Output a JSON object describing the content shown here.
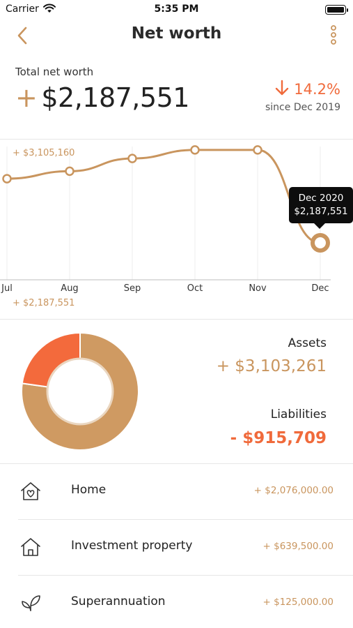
{
  "status_bar": {
    "carrier": "Carrier",
    "time": "5:35 PM"
  },
  "nav": {
    "title": "Net worth",
    "back_icon": "chevron-left-icon",
    "more_icon": "more-vertical-icon"
  },
  "summary": {
    "label": "Total net worth",
    "sign": "+",
    "value": "$2,187,551",
    "change": "14.2%",
    "change_direction": "down",
    "change_since": "since Dec 2019"
  },
  "colors": {
    "accent": "#c9955e",
    "negative": "#f06a3b",
    "tooltip_bg": "#0d0d0d"
  },
  "chart_data": {
    "type": "line",
    "categories": [
      "Jul",
      "Aug",
      "Sep",
      "Oct",
      "Nov",
      "Dec"
    ],
    "series": [
      {
        "values": [
          2790000,
          2860000,
          2980000,
          3060000,
          3060000,
          2187551
        ]
      }
    ],
    "max_label": "+ $3,105,160",
    "min_label": "+ $2,187,551",
    "ylim": [
      2187551,
      3105160
    ],
    "grid": "vertical",
    "highlight": {
      "index": 5,
      "title": "Dec 2020",
      "value": "$2,187,551"
    }
  },
  "breakdown": {
    "assets_label": "Assets",
    "assets_value": "+ $3,103,261",
    "liabilities_label": "Liabilities",
    "liabilities_value": "- $915,709",
    "donut": [
      {
        "value": 3103261,
        "color": "#cf9a62"
      },
      {
        "value": 915709,
        "color": "#f36a3c"
      }
    ]
  },
  "items": [
    {
      "name": "Home",
      "amount": "+ $2,076,000.00",
      "icon": "home-heart-icon"
    },
    {
      "name": "Investment property",
      "amount": "+ $639,500.00",
      "icon": "house-icon"
    },
    {
      "name": "Superannuation",
      "amount": "+ $125,000.00",
      "icon": "leaf-icon"
    }
  ]
}
